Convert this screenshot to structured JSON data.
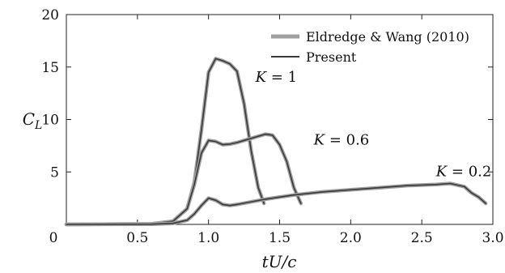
{
  "chart_data": {
    "type": "line",
    "xlabel": "tU/c",
    "ylabel": "C_L",
    "xlim": [
      0,
      3.0
    ],
    "ylim": [
      0,
      20
    ],
    "xticks": [
      "0",
      "0.5",
      "1.0",
      "1.5",
      "2.0",
      "2.5",
      "3.0"
    ],
    "xtick_values": [
      0,
      0.5,
      1.0,
      1.5,
      2.0,
      2.5,
      3.0
    ],
    "yticks": [
      "5",
      "10",
      "15",
      "20"
    ],
    "ytick_values": [
      5,
      10,
      15,
      20
    ],
    "grid": false,
    "legend_position": "top-right",
    "legend": [
      {
        "label": "Eldredge & Wang (2010)",
        "color": "#a0a0a0"
      },
      {
        "label": "Present",
        "color": "#3a3a3a"
      }
    ],
    "annotations": [
      {
        "text": "K = 1",
        "x": 1.33,
        "y": 13.6
      },
      {
        "text": "K = 0.6",
        "x": 1.74,
        "y": 7.6
      },
      {
        "text": "K = 0.2",
        "x": 2.6,
        "y": 4.6
      }
    ],
    "series": [
      {
        "name": "K = 1",
        "x": [
          0,
          0.6,
          0.75,
          0.85,
          0.9,
          0.95,
          1.0,
          1.05,
          1.1,
          1.15,
          1.2,
          1.25,
          1.3,
          1.35,
          1.39
        ],
        "y": [
          0,
          0.05,
          0.3,
          1.5,
          4.0,
          9.0,
          14.5,
          15.8,
          15.6,
          15.3,
          14.6,
          11.5,
          7.0,
          3.5,
          2.0
        ]
      },
      {
        "name": "K = 0.6",
        "x": [
          0,
          0.6,
          0.75,
          0.85,
          0.9,
          0.95,
          1.0,
          1.05,
          1.1,
          1.15,
          1.2,
          1.3,
          1.4,
          1.45,
          1.5,
          1.55,
          1.6,
          1.65
        ],
        "y": [
          0,
          0.05,
          0.3,
          1.5,
          3.8,
          6.8,
          8.0,
          7.9,
          7.6,
          7.65,
          7.8,
          8.2,
          8.6,
          8.5,
          7.6,
          6.0,
          3.5,
          2.0
        ]
      },
      {
        "name": "K = 0.2",
        "x": [
          0,
          0.6,
          0.75,
          0.85,
          0.9,
          0.95,
          1.0,
          1.05,
          1.1,
          1.15,
          1.2,
          1.4,
          1.6,
          1.8,
          2.0,
          2.2,
          2.4,
          2.6,
          2.7,
          2.8,
          2.85,
          2.9,
          2.95
        ],
        "y": [
          0,
          0.02,
          0.1,
          0.4,
          1.0,
          1.8,
          2.5,
          2.3,
          1.9,
          1.8,
          1.9,
          2.4,
          2.8,
          3.1,
          3.3,
          3.5,
          3.7,
          3.8,
          3.9,
          3.6,
          3.0,
          2.6,
          2.0
        ]
      }
    ]
  }
}
